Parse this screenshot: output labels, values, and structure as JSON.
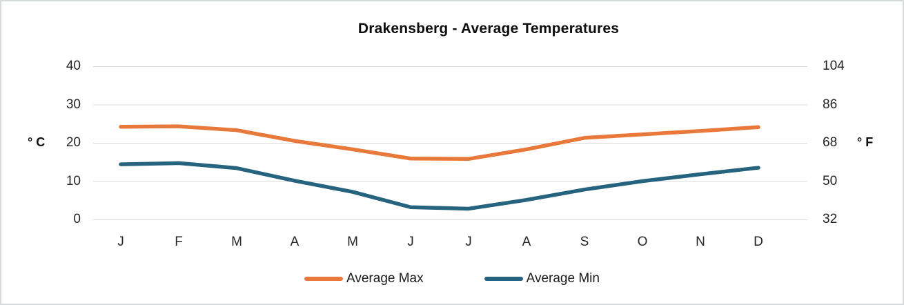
{
  "chart_data": {
    "type": "line",
    "title": "Drakensberg - Average Temperatures",
    "categories": [
      "J",
      "F",
      "M",
      "A",
      "M",
      "J",
      "J",
      "A",
      "S",
      "O",
      "N",
      "D"
    ],
    "series": [
      {
        "name": "Average Max",
        "color": "#E8793A",
        "values": [
          24.2,
          24.3,
          23.3,
          20.5,
          18.3,
          15.9,
          15.8,
          18.3,
          21.3,
          22.2,
          23.1,
          24.1
        ]
      },
      {
        "name": "Average Min",
        "color": "#25637F",
        "values": [
          14.4,
          14.7,
          13.4,
          10.1,
          7.2,
          3.2,
          2.8,
          5.1,
          7.8,
          10.0,
          11.8,
          13.5
        ]
      }
    ],
    "left_axis": {
      "label": "° C",
      "ticks": [
        0,
        10,
        20,
        30,
        40
      ],
      "range": [
        0,
        40
      ]
    },
    "right_axis": {
      "label": "° F",
      "ticks": [
        32,
        50,
        68,
        86,
        104
      ]
    },
    "legend": {
      "position": "bottom",
      "entries": [
        "Average Max",
        "Average Min"
      ]
    },
    "grid": "horizontal-only",
    "style": {
      "gridline_color": "#D9D9D9",
      "text_color": "#262626",
      "title_color": "#0D0D0D",
      "border_color": "#D5D9DC",
      "background": "#FFFFFF",
      "line_width": 5.5
    }
  }
}
